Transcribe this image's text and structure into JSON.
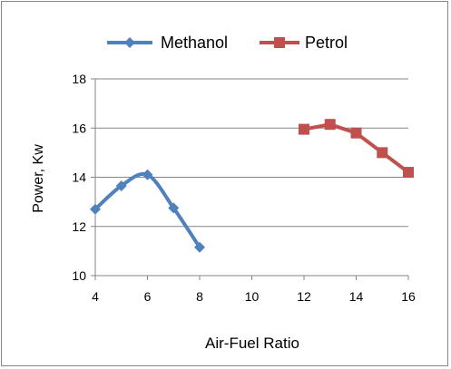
{
  "chart_data": {
    "type": "line",
    "xlabel": "Air-Fuel Ratio",
    "ylabel": "Power, Kw",
    "xlim": [
      4,
      16
    ],
    "ylim": [
      10,
      18
    ],
    "x_ticks": [
      "4",
      "6",
      "8",
      "10",
      "12",
      "14",
      "16"
    ],
    "y_ticks": [
      "10",
      "12",
      "14",
      "16",
      "18"
    ],
    "grid": "horizontal",
    "legend_position": "top",
    "series": [
      {
        "name": "Methanol",
        "color": "#4F81BD",
        "marker": "diamond",
        "smooth": true,
        "x": [
          4,
          5,
          6,
          7,
          8
        ],
        "y": [
          12.7,
          13.65,
          14.1,
          12.75,
          11.15
        ]
      },
      {
        "name": "Petrol",
        "color": "#C0504D",
        "marker": "square",
        "smooth": false,
        "x": [
          12,
          13,
          14,
          15,
          16
        ],
        "y": [
          15.95,
          16.15,
          15.8,
          15.0,
          14.2
        ]
      }
    ]
  }
}
